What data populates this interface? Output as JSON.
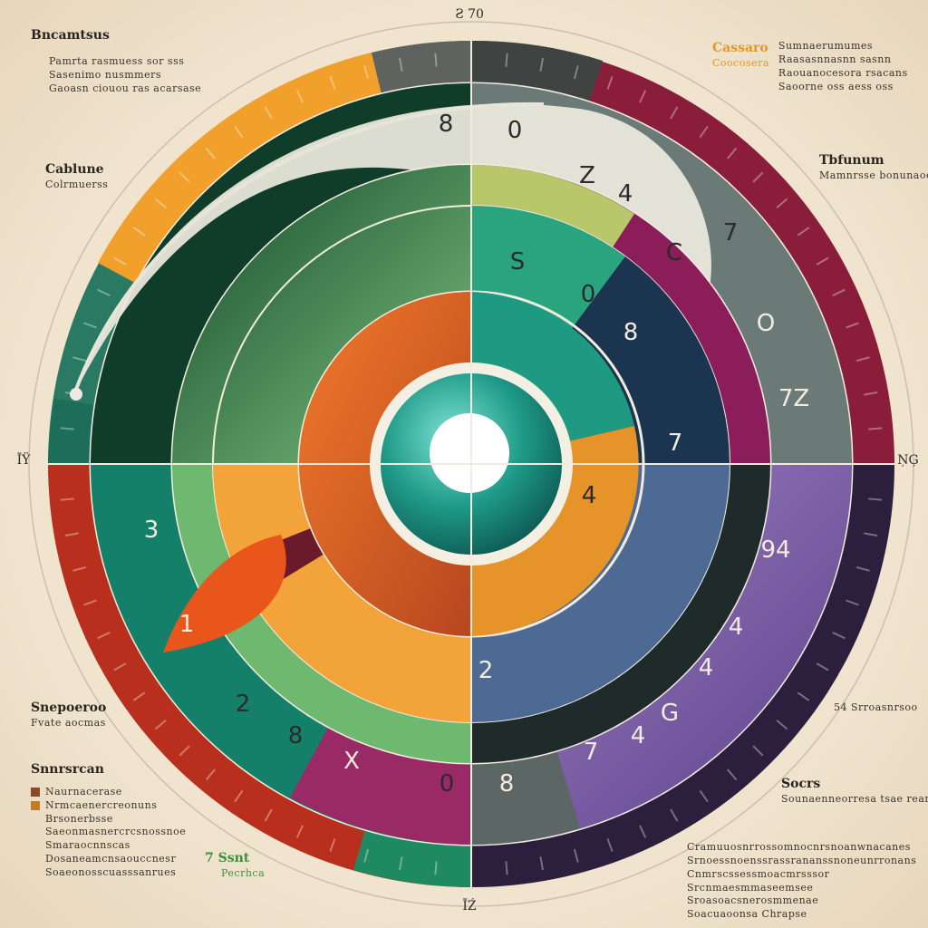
{
  "diagram": {
    "top_label": "Ƨ 70",
    "bottom_label": "ĪŹ",
    "left_label": "ĪŸ",
    "right_label": "ŅĢ",
    "digits": [
      {
        "id": "d-top-8",
        "text": "8"
      },
      {
        "id": "d-top-0",
        "text": "0"
      },
      {
        "id": "d-z",
        "text": "Z"
      },
      {
        "id": "d-4a",
        "text": "4"
      },
      {
        "id": "d-7a",
        "text": "7"
      },
      {
        "id": "d-c",
        "text": "C"
      },
      {
        "id": "d-o",
        "text": "O"
      },
      {
        "id": "d-7z",
        "text": "7Z"
      },
      {
        "id": "d-s5",
        "text": "S"
      },
      {
        "id": "d-0b",
        "text": "0"
      },
      {
        "id": "d-8c",
        "text": "8"
      },
      {
        "id": "d-4b",
        "text": "4"
      },
      {
        "id": "d-7b",
        "text": "7"
      },
      {
        "id": "d-3",
        "text": "3"
      },
      {
        "id": "d-1",
        "text": "1"
      },
      {
        "id": "d-2",
        "text": "2"
      },
      {
        "id": "d-8d",
        "text": "8"
      },
      {
        "id": "d-x",
        "text": "X"
      },
      {
        "id": "d-0c",
        "text": "0"
      },
      {
        "id": "d-8e",
        "text": "8"
      },
      {
        "id": "d-94",
        "text": "94"
      },
      {
        "id": "d-4c",
        "text": "4"
      },
      {
        "id": "d-4d",
        "text": "4"
      },
      {
        "id": "d-7c",
        "text": "7"
      },
      {
        "id": "d-4e",
        "text": "4"
      },
      {
        "id": "d-2b",
        "text": "2"
      },
      {
        "id": "d-g",
        "text": "G"
      }
    ]
  },
  "notes": {
    "top_left": {
      "heading": "Bncamtsus",
      "lines": [
        "Pamrta rasmuess sor sss",
        "Sasenimo nusmmers",
        "Gaoasn ciouou ras acarsase"
      ]
    },
    "left_mid": {
      "heading": "Cablune",
      "lines": [
        "Colrmuerss"
      ]
    },
    "left_low": {
      "heading": "Snepoeroo",
      "lines": [
        "Fvate aocmas"
      ]
    },
    "left_bottom": {
      "heading": "Snnrsrcan",
      "lines": [
        "Naurnacerase",
        "Nrmcaenercreonuns",
        "Brsonerbsse",
        "Saeonmasnercrcsnossnoe",
        "Smaraocnnscas",
        "Dosaneamcnsaouccnesr",
        "Soaeonosscuasssanrues"
      ]
    },
    "bottom_mid": {
      "heading": "7 Ssnt",
      "sub": "Pecrhca"
    },
    "top_right": {
      "heading": "Cassaro",
      "sub": "Coocosera",
      "lines": [
        "Sumnaerumumes",
        "Raasasnnasnn sasnn",
        "Raouanocesora rsacans",
        "Saoorne oss aess oss"
      ]
    },
    "right_mid": {
      "heading": "Tbfunum",
      "lines": [
        "Mamnrsse bonunaoes"
      ]
    },
    "right_low": {
      "heading": "",
      "lines": [
        "54 Srroasnrsoo"
      ]
    },
    "right_low2": {
      "heading": "Socrs",
      "lines": [
        "Sounaenneorresa tsae rearnsa"
      ]
    },
    "bottom_right": {
      "heading": "",
      "lines": [
        "Cramuuosnrrossomnocnrsnoanwnacanes",
        "Srnoessnoenssrassrananssnoneunrronans",
        "Cnmrscssessmoacmrsssor",
        "Srcnmaesmmaseemsee",
        "Sroasoacsnerosmmenae",
        "Soacuaoonsa Chrapse"
      ]
    }
  }
}
